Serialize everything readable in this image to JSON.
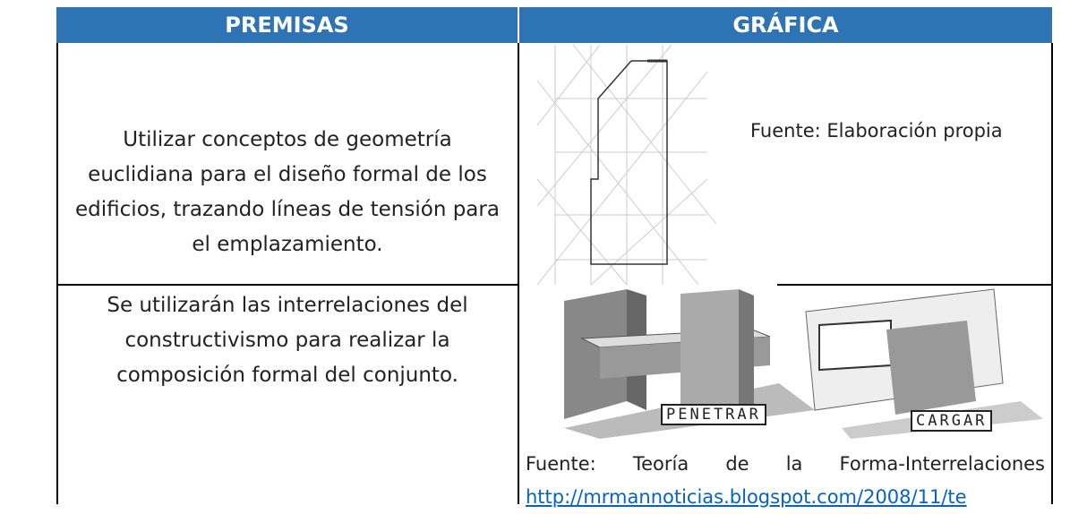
{
  "header": {
    "columns": [
      "PREMISAS",
      "GRÁFICA"
    ]
  },
  "rows": [
    {
      "premise": "Utilizar conceptos de geometría euclidiana para el diseño formal de los edificios, trazando líneas de tensión para el emplazamiento.",
      "graphic": {
        "caption": "Fuente: Elaboración propia"
      }
    },
    {
      "premise": "Se utilizarán las interrelaciones del constructivismo para realizar la composición formal del conjunto.",
      "graphic": {
        "labels": [
          "PENETRAR",
          "CARGAR"
        ],
        "caption": "Fuente: Teoría de la Forma-Interrelaciones",
        "link": "http://mrmannoticias.blogspot.com/2008/11/te"
      }
    }
  ]
}
